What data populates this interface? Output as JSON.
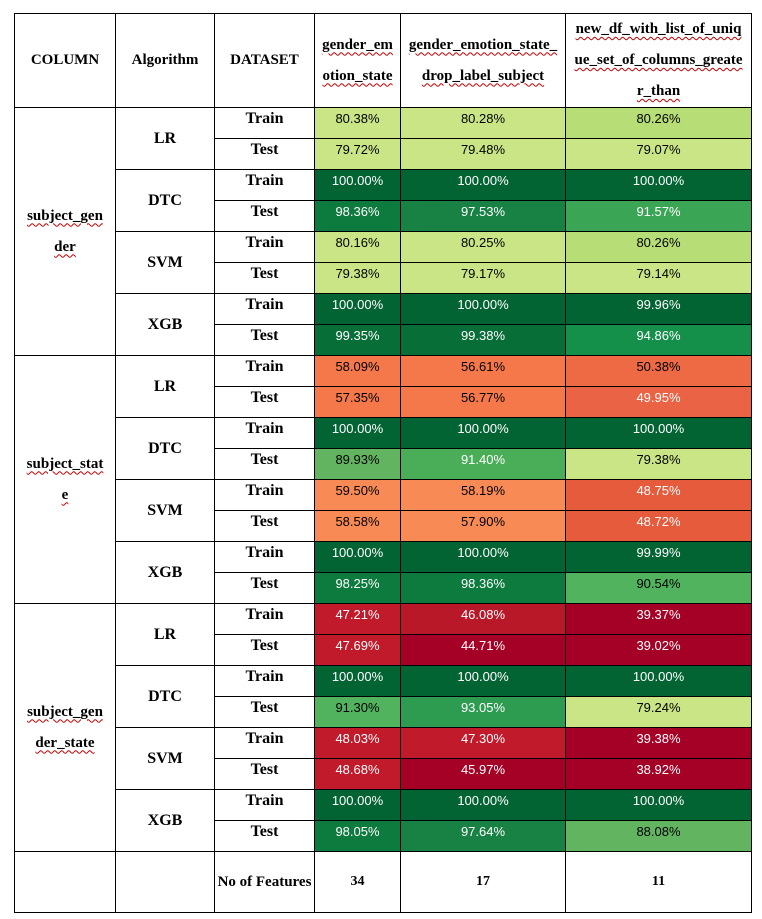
{
  "headers": {
    "column": "COLUMN",
    "algorithm": "Algorithm",
    "dataset": "DATASET",
    "f1": "gender_emotion_state",
    "f2": "gender_emotion_state_drop_label_subject",
    "f3": "new_df_with_list_of_unique_set_of_columns_greater_than"
  },
  "groups": [
    {
      "column": "subject_gender",
      "algorithms": [
        {
          "name": "LR",
          "rows": [
            {
              "dataset": "Train",
              "values": [
                "80.38%",
                "80.28%",
                "80.26%"
              ],
              "colors": [
                "#c9e585",
                "#c9e585",
                "#b7dd77"
              ]
            },
            {
              "dataset": "Test",
              "values": [
                "79.72%",
                "79.48%",
                "79.07%"
              ],
              "colors": [
                "#c9e585",
                "#c9e585",
                "#c9e585"
              ]
            }
          ]
        },
        {
          "name": "DTC",
          "rows": [
            {
              "dataset": "Train",
              "values": [
                "100.00%",
                "100.00%",
                "100.00%"
              ],
              "colors": [
                "#036433",
                "#036433",
                "#036433"
              ]
            },
            {
              "dataset": "Test",
              "values": [
                "98.36%",
                "97.53%",
                "91.57%"
              ],
              "colors": [
                "#0d7a3e",
                "#178244",
                "#3ba556"
              ]
            }
          ]
        },
        {
          "name": "SVM",
          "rows": [
            {
              "dataset": "Train",
              "values": [
                "80.16%",
                "80.25%",
                "80.26%"
              ],
              "colors": [
                "#c9e585",
                "#c9e585",
                "#b7dd77"
              ]
            },
            {
              "dataset": "Test",
              "values": [
                "79.38%",
                "79.17%",
                "79.14%"
              ],
              "colors": [
                "#c9e585",
                "#c9e585",
                "#c9e585"
              ]
            }
          ]
        },
        {
          "name": "XGB",
          "rows": [
            {
              "dataset": "Train",
              "values": [
                "100.00%",
                "100.00%",
                "99.96%"
              ],
              "colors": [
                "#036433",
                "#036433",
                "#036433"
              ]
            },
            {
              "dataset": "Test",
              "values": [
                "99.35%",
                "99.38%",
                "94.86%"
              ],
              "colors": [
                "#086e38",
                "#086e38",
                "#15904a"
              ]
            }
          ]
        }
      ]
    },
    {
      "column": "subject_state",
      "algorithms": [
        {
          "name": "LR",
          "rows": [
            {
              "dataset": "Train",
              "values": [
                "58.09%",
                "56.61%",
                "50.38%"
              ],
              "colors": [
                "#f4784a",
                "#f4784a",
                "#ed6a45"
              ]
            },
            {
              "dataset": "Test",
              "values": [
                "57.35%",
                "56.77%",
                "49.95%"
              ],
              "colors": [
                "#f4784a",
                "#f4784a",
                "#ea6344"
              ]
            }
          ]
        },
        {
          "name": "DTC",
          "rows": [
            {
              "dataset": "Train",
              "values": [
                "100.00%",
                "100.00%",
                "100.00%"
              ],
              "colors": [
                "#036433",
                "#036433",
                "#036433"
              ]
            },
            {
              "dataset": "Test",
              "values": [
                "89.93%",
                "91.40%",
                "79.38%"
              ],
              "colors": [
                "#62b461",
                "#4aae59",
                "#c9e585"
              ]
            }
          ]
        },
        {
          "name": "SVM",
          "rows": [
            {
              "dataset": "Train",
              "values": [
                "59.50%",
                "58.19%",
                "48.75%"
              ],
              "colors": [
                "#f88b55",
                "#f88b55",
                "#e75b3d"
              ]
            },
            {
              "dataset": "Test",
              "values": [
                "58.58%",
                "57.90%",
                "48.72%"
              ],
              "colors": [
                "#f88b55",
                "#f88b55",
                "#e75b3d"
              ]
            }
          ]
        },
        {
          "name": "XGB",
          "rows": [
            {
              "dataset": "Train",
              "values": [
                "100.00%",
                "100.00%",
                "99.99%"
              ],
              "colors": [
                "#036433",
                "#036433",
                "#036433"
              ]
            },
            {
              "dataset": "Test",
              "values": [
                "98.25%",
                "98.36%",
                "90.54%"
              ],
              "colors": [
                "#0d7a3e",
                "#0d7a3e",
                "#52b35e"
              ]
            }
          ]
        }
      ]
    },
    {
      "column": "subject_gender_state",
      "algorithms": [
        {
          "name": "LR",
          "rows": [
            {
              "dataset": "Train",
              "values": [
                "47.21%",
                "46.08%",
                "39.37%"
              ],
              "colors": [
                "#c11a2a",
                "#b81828",
                "#a50026"
              ]
            },
            {
              "dataset": "Test",
              "values": [
                "47.69%",
                "44.71%",
                "39.02%"
              ],
              "colors": [
                "#c11a2a",
                "#a50026",
                "#a50026"
              ]
            }
          ]
        },
        {
          "name": "DTC",
          "rows": [
            {
              "dataset": "Train",
              "values": [
                "100.00%",
                "100.00%",
                "100.00%"
              ],
              "colors": [
                "#036433",
                "#036433",
                "#036433"
              ]
            },
            {
              "dataset": "Test",
              "values": [
                "91.30%",
                "93.05%",
                "79.24%"
              ],
              "colors": [
                "#52b35e",
                "#2d9c50",
                "#c9e585"
              ]
            }
          ]
        },
        {
          "name": "SVM",
          "rows": [
            {
              "dataset": "Train",
              "values": [
                "48.03%",
                "47.30%",
                "39.38%"
              ],
              "colors": [
                "#c11a2a",
                "#c11a2a",
                "#a50026"
              ]
            },
            {
              "dataset": "Test",
              "values": [
                "48.68%",
                "45.97%",
                "38.92%"
              ],
              "colors": [
                "#c11a2a",
                "#a50026",
                "#a50026"
              ]
            }
          ]
        },
        {
          "name": "XGB",
          "rows": [
            {
              "dataset": "Train",
              "values": [
                "100.00%",
                "100.00%",
                "100.00%"
              ],
              "colors": [
                "#036433",
                "#036433",
                "#036433"
              ]
            },
            {
              "dataset": "Test",
              "values": [
                "98.05%",
                "97.64%",
                "88.08%"
              ],
              "colors": [
                "#0d7a3e",
                "#178244",
                "#62b461"
              ]
            }
          ]
        }
      ]
    }
  ],
  "footer": {
    "label": "No of Features",
    "values": [
      "34",
      "17",
      "11"
    ]
  }
}
